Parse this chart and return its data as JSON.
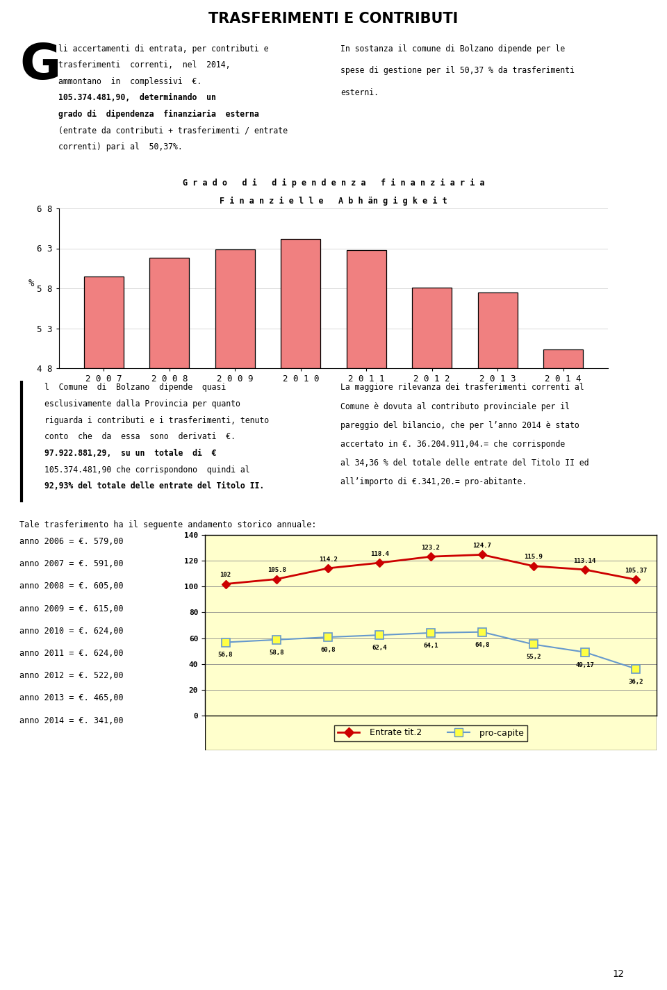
{
  "page_title": "TRASFERIMENTI E CONTRIBUTI",
  "page_bg": "#ffffff",
  "bar_chart_title1": "G r a d o   d i   d i p e n d e n z a   f i n a n z i a r i a",
  "bar_chart_title2": "F i n a n z i e l l e   A b h än g i g k e i t",
  "bar_years": [
    "2 0 0 7",
    "2 0 0 8",
    "2 0 0 9",
    "2 0 1 0",
    "2 0 1 1",
    "2 0 1 2",
    "2 0 1 3",
    "2 0 1 4"
  ],
  "bar_values": [
    59.5,
    61.8,
    62.9,
    64.2,
    62.8,
    58.1,
    57.5,
    50.37
  ],
  "bar_color": "#f08080",
  "bar_edge_color": "#000000",
  "bar_ylim": [
    48,
    68
  ],
  "bar_yticks": [
    48,
    53,
    58,
    63,
    68
  ],
  "bar_ylabel": "%",
  "line_chart_years": [
    "2006",
    "2007",
    "2008",
    "2009",
    "2010",
    "2011",
    "2012",
    "2013",
    "2014"
  ],
  "line1_values": [
    102,
    105.8,
    114.2,
    118.4,
    123.2,
    124.7,
    115.9,
    113.14,
    105.37
  ],
  "line1_label": "Entrate tit.2",
  "line1_color": "#cc0000",
  "line1_marker": "D",
  "line2_values": [
    56.8,
    58.8,
    60.8,
    62.4,
    64.1,
    64.8,
    55.2,
    49.17,
    36.2
  ],
  "line2_label": "pro-capite",
  "line2_color": "#6699cc",
  "line2_marker": "s",
  "line_chart_bg": "#ffffcc",
  "line_ylim": [
    0,
    140
  ],
  "line_yticks": [
    0,
    20,
    40,
    60,
    80,
    100,
    120,
    140
  ],
  "page_number": "12"
}
